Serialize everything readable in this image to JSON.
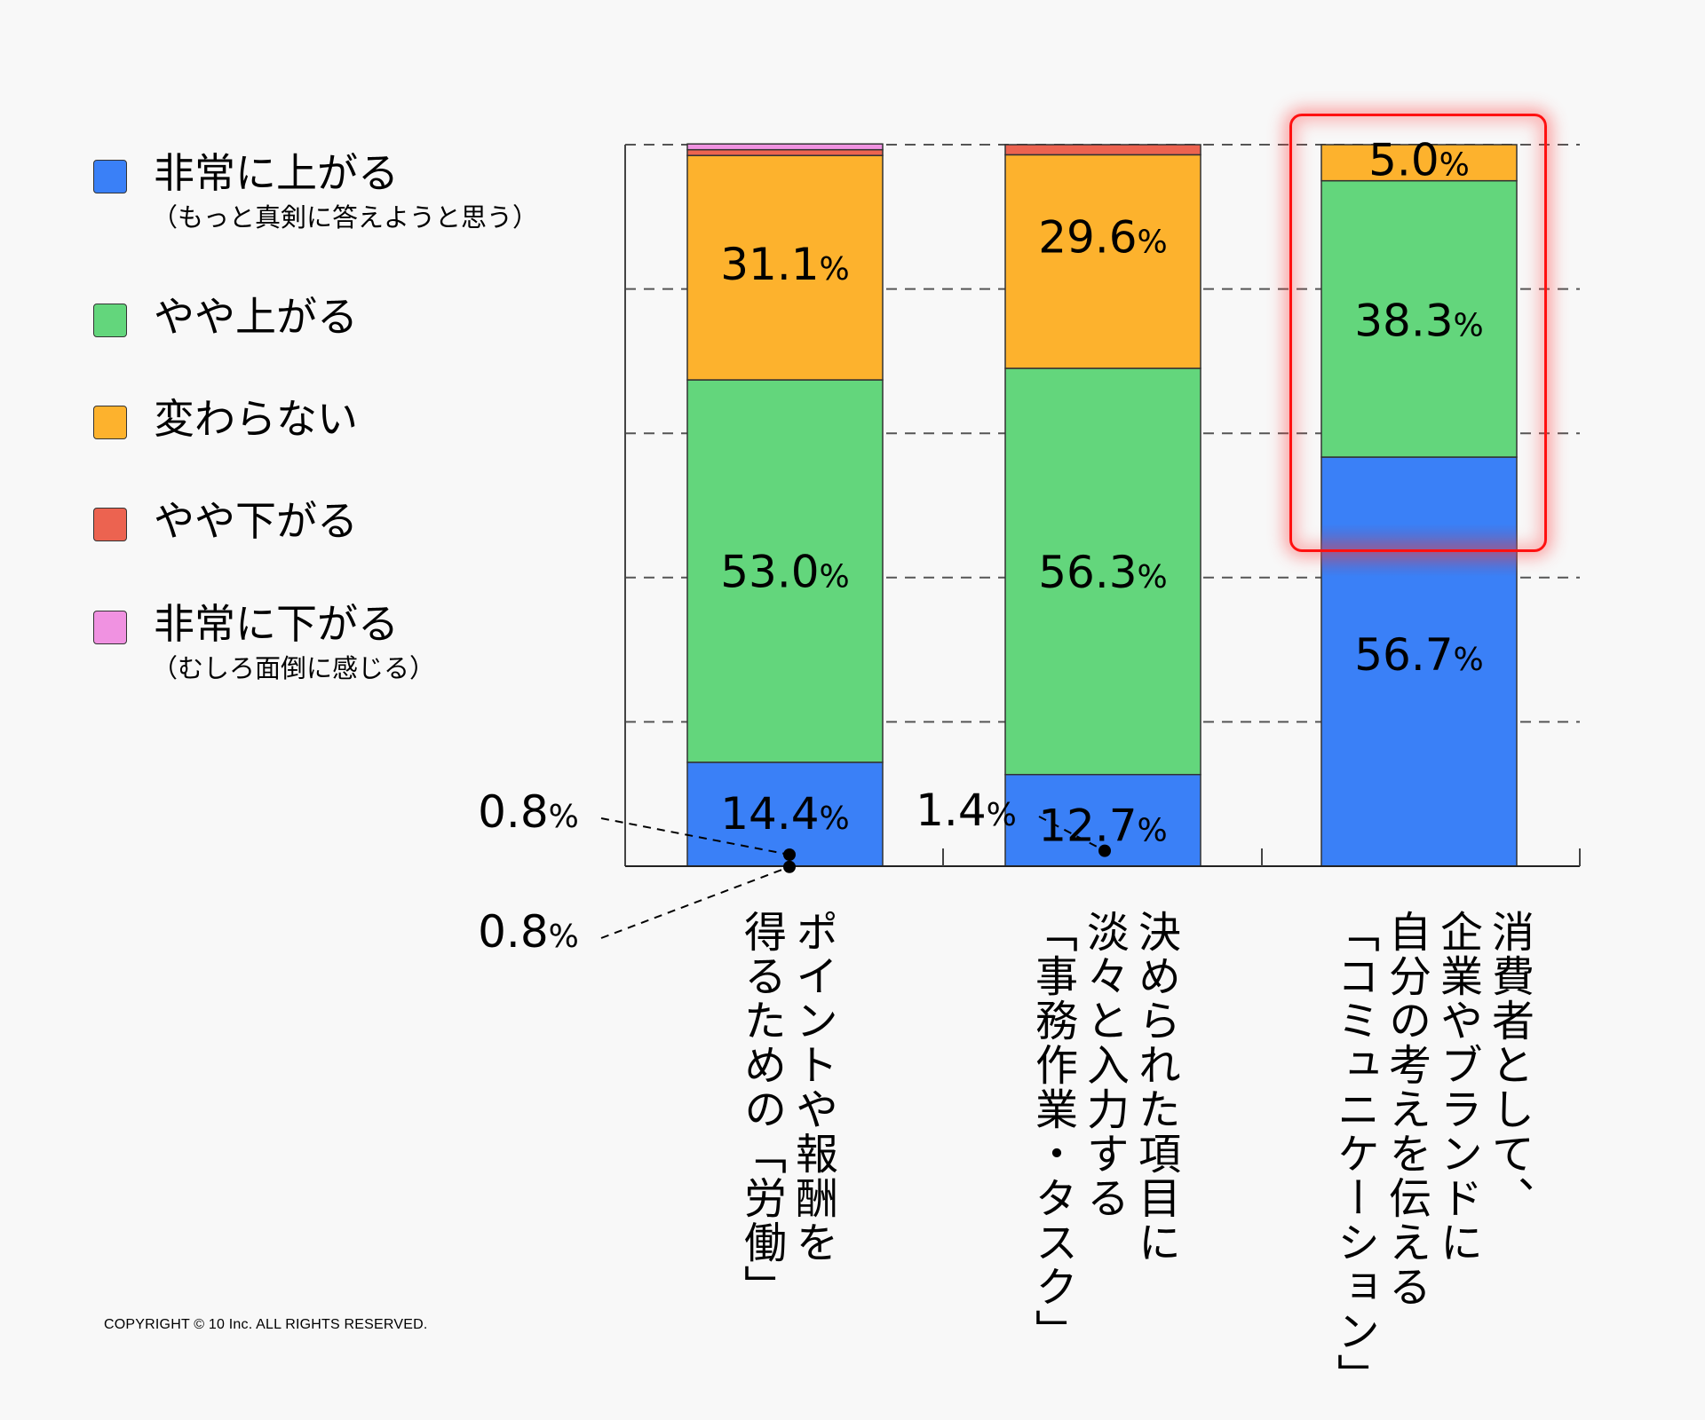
{
  "chart_data": {
    "type": "bar",
    "stacked": true,
    "orientation": "vertical",
    "title": "",
    "xlabel": "",
    "ylabel": "",
    "ylim": [
      0,
      100
    ],
    "grid": true,
    "grid_step": 20,
    "legend_position": "left",
    "categories": [
      "ポイントや報酬を\n得るための「労働」",
      "決められた項目に\n淡々と入力する\n「事務作業・タスク」",
      "消費者として、\n企業やブランドに\n自分の考えを伝える\n「コミュニケーション」"
    ],
    "series": [
      {
        "name": "非常に上がる",
        "sub": "（もっと真剣に答えようと思う）",
        "color": "#3a80f7",
        "values": [
          14.4,
          12.7,
          56.7
        ]
      },
      {
        "name": "やや上がる",
        "sub": "",
        "color": "#63d67c",
        "values": [
          53.0,
          56.3,
          38.3
        ]
      },
      {
        "name": "変わらない",
        "sub": "",
        "color": "#fdb22d",
        "values": [
          31.1,
          29.6,
          5.0
        ]
      },
      {
        "name": "やや下がる",
        "sub": "",
        "color": "#ec6350",
        "values": [
          0.8,
          1.4,
          0.0
        ]
      },
      {
        "name": "非常に下がる",
        "sub": "（むしろ面倒に感じる）",
        "color": "#f092e1",
        "values": [
          0.8,
          0.0,
          0.0
        ]
      }
    ],
    "data_labels": [
      [
        "14.4",
        "53.0",
        "31.1",
        "0.8",
        "0.8"
      ],
      [
        "12.7",
        "56.3",
        "29.6",
        "1.4",
        ""
      ],
      [
        "56.7",
        "38.3",
        "5.0",
        "",
        ""
      ]
    ],
    "percent_sign": "%",
    "highlight": {
      "category_index": 2,
      "series_index": 0,
      "color": "#ff1010"
    }
  },
  "footer": {
    "copyright": "COPYRIGHT © 10 Inc. ALL RIGHTS RESERVED."
  }
}
